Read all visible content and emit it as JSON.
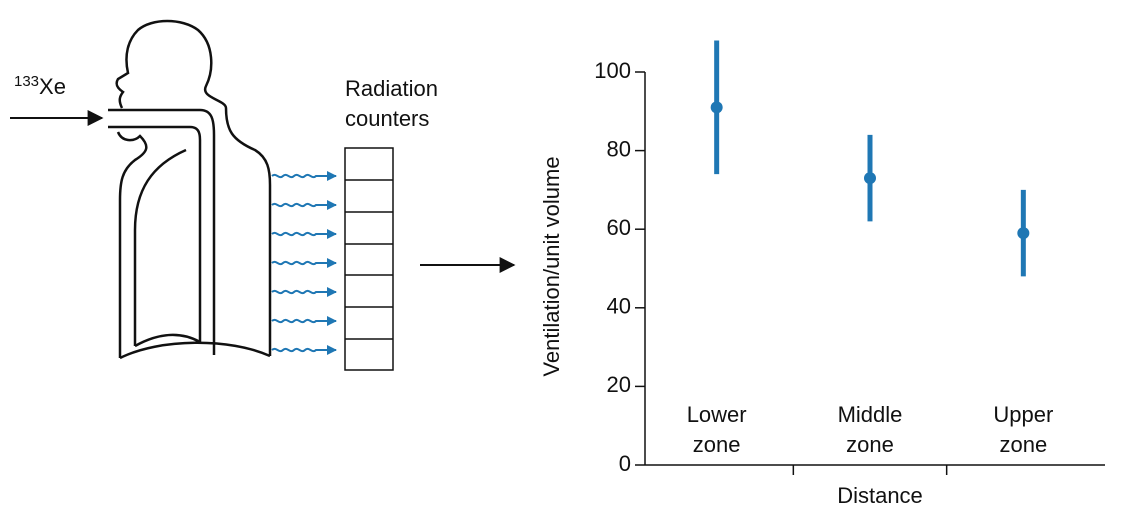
{
  "diagram": {
    "gas_mass": "133",
    "gas_symbol": "Xe",
    "detector_label": "Radiation counters"
  },
  "chart_data": {
    "type": "errorbar",
    "categories": [
      "Lower zone",
      "Middle zone",
      "Upper zone"
    ],
    "values": [
      91,
      73,
      59
    ],
    "errors": [
      17,
      11,
      11
    ],
    "color": "#1f77b4",
    "y_label": "Ventilation/unit volume",
    "x_label": "Distance",
    "ylim": [
      0,
      100
    ],
    "yticks": [
      0,
      20,
      40,
      60,
      80,
      100
    ]
  }
}
